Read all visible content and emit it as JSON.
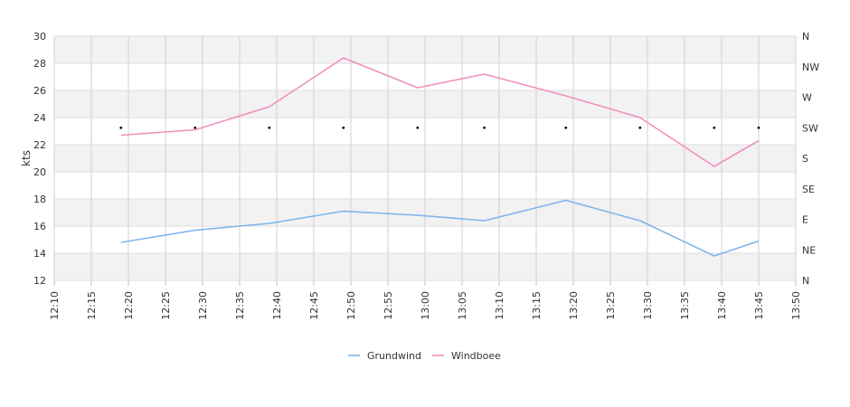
{
  "chart_data": {
    "type": "line",
    "ylabel": "kts",
    "ylim": [
      12,
      30
    ],
    "yticks": [
      12,
      14,
      16,
      18,
      20,
      22,
      24,
      26,
      28,
      30
    ],
    "xlim": [
      "12:10",
      "13:50"
    ],
    "xticks": [
      "12:10",
      "12:15",
      "12:20",
      "12:25",
      "12:30",
      "12:35",
      "12:40",
      "12:45",
      "12:50",
      "12:55",
      "13:00",
      "13:05",
      "13:10",
      "13:15",
      "13:20",
      "13:25",
      "13:30",
      "13:35",
      "13:40",
      "13:45",
      "13:50"
    ],
    "y2_ticks": [
      "N",
      "NE",
      "E",
      "SE",
      "S",
      "SW",
      "W",
      "NW",
      "N"
    ],
    "grid": true,
    "legend_position": "bottom",
    "series": [
      {
        "name": "Grundwind",
        "color": "#7cb5ec",
        "x": [
          "12:19",
          "12:29",
          "12:39",
          "12:49",
          "12:59",
          "13:08",
          "13:19",
          "13:29",
          "13:39",
          "13:45"
        ],
        "values": [
          14.8,
          15.7,
          16.2,
          17.1,
          16.8,
          16.4,
          17.9,
          16.4,
          13.8,
          14.9
        ]
      },
      {
        "name": "Windboee",
        "color": "#f28fbf",
        "x": [
          "12:19",
          "12:29",
          "12:39",
          "12:49",
          "12:59",
          "13:08",
          "13:19",
          "13:29",
          "13:39",
          "13:45"
        ],
        "values": [
          22.7,
          23.1,
          24.8,
          28.4,
          26.2,
          27.2,
          25.6,
          24.0,
          20.4,
          22.3
        ]
      }
    ],
    "direction_markers": {
      "x": [
        "12:19",
        "12:29",
        "12:39",
        "12:49",
        "12:59",
        "13:08",
        "13:19",
        "13:29",
        "13:39",
        "13:45"
      ],
      "values": [
        "SW",
        "SW",
        "SW",
        "SW",
        "SW",
        "SW",
        "SW",
        "SW",
        "SW",
        "SW"
      ]
    }
  }
}
